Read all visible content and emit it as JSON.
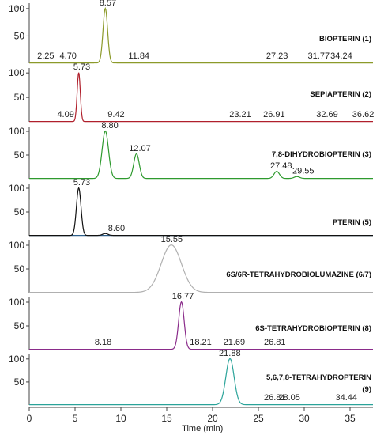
{
  "chart_data": {
    "type": "line",
    "x_axis": {
      "label": "Time (min)",
      "range": [
        0,
        37.5
      ],
      "ticks": [
        0,
        5,
        10,
        15,
        20,
        25,
        30,
        35
      ]
    },
    "y_ticks": [
      50,
      100
    ],
    "panels": [
      {
        "compound": "BIOPTERIN (1)",
        "color": "#8c9a2a",
        "y_range": [
          0,
          110
        ],
        "peaks": [
          {
            "rt": 8.3,
            "height": 100,
            "sigma": 0.25
          }
        ],
        "retention_labels": [
          "2.25",
          "4.70",
          "8.57",
          "11.84",
          "27.23",
          "31.77",
          "34.24"
        ]
      },
      {
        "compound": "SEPIAPTERIN (2)",
        "color": "#b0202c",
        "y_range": [
          0,
          110
        ],
        "peaks": [
          {
            "rt": 5.4,
            "height": 100,
            "sigma": 0.17
          }
        ],
        "retention_labels": [
          "4.09",
          "5.73",
          "9.42",
          "23.21",
          "26.91",
          "32.69",
          "36.62"
        ]
      },
      {
        "compound": "7,8-DIHYDROBIOPTERIN (3)",
        "color": "#2e9a2e",
        "y_range": [
          0,
          110
        ],
        "peaks": [
          {
            "rt": 8.3,
            "height": 100,
            "sigma": 0.35
          },
          {
            "rt": 11.7,
            "height": 52,
            "sigma": 0.3
          },
          {
            "rt": 27.0,
            "height": 15,
            "sigma": 0.3
          },
          {
            "rt": 29.2,
            "height": 4,
            "sigma": 0.3
          }
        ],
        "retention_labels": [
          "8.80",
          "12.07",
          "27.48",
          "29.55"
        ]
      },
      {
        "compound": "PTERIN (5)",
        "color": "#111111",
        "baseline_color": "#2d5f8a",
        "y_range": [
          0,
          110
        ],
        "peaks": [
          {
            "rt": 5.4,
            "height": 100,
            "sigma": 0.25
          },
          {
            "rt": 8.3,
            "height": 4,
            "sigma": 0.3
          }
        ],
        "retention_labels": [
          "5.73",
          "8.60"
        ]
      },
      {
        "compound": "6S/6R-TETRAHYDROBIOLUMAZINE (6/7)",
        "color": "#b0b0b0",
        "y_range": [
          0,
          110
        ],
        "peaks": [
          {
            "rt": 15.5,
            "height": 100,
            "sigma": 1.1
          }
        ],
        "retention_labels": [
          "15.55"
        ]
      },
      {
        "compound": "6S-TETRAHYDROBIOPTERIN (8)",
        "color": "#8a2b8a",
        "y_range": [
          0,
          110
        ],
        "peaks": [
          {
            "rt": 16.6,
            "height": 100,
            "sigma": 0.3
          }
        ],
        "retention_labels": [
          "8.18",
          "16.77",
          "18.21",
          "21.69",
          "26.81"
        ]
      },
      {
        "compound": "5,6,7,8-TETRAHYDROPTERIN",
        "compound_number": "(9)",
        "color": "#2aa399",
        "y_range": [
          0,
          110
        ],
        "peaks": [
          {
            "rt": 21.9,
            "height": 100,
            "sigma": 0.45
          }
        ],
        "retention_labels": [
          "21.88",
          "26.81",
          "28.05",
          "34.44"
        ]
      }
    ]
  }
}
